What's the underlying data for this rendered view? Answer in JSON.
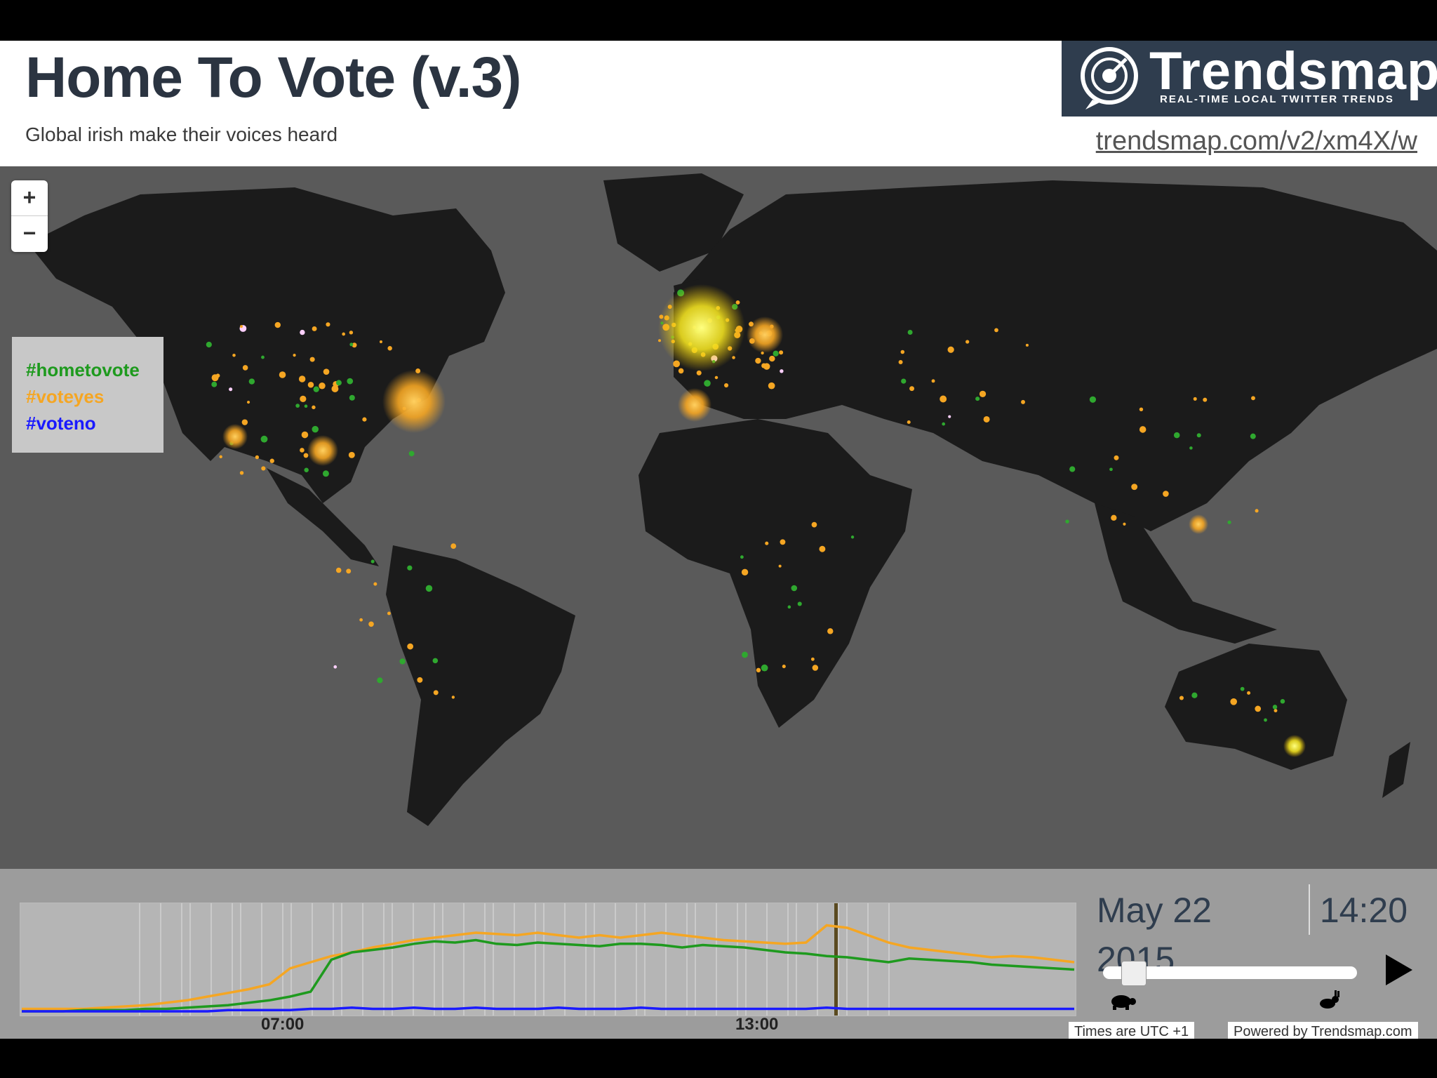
{
  "header": {
    "title": "Home To Vote (v.3)",
    "subtitle": "Global irish make their voices heard",
    "link": "trendsmap.com/v2/xm4X/w"
  },
  "logo": {
    "name": "Trendsmap",
    "tagline": "REAL-TIME LOCAL TWITTER TRENDS"
  },
  "zoom": {
    "in_label": "+",
    "out_label": "−"
  },
  "legend": {
    "items": [
      {
        "label": "#hometovote",
        "color": "#1e9a1e"
      },
      {
        "label": "#voteyes",
        "color": "#f5a623"
      },
      {
        "label": "#voteno",
        "color": "#1a1aff"
      }
    ]
  },
  "timeline": {
    "tick_labels": [
      "07:00",
      "13:00"
    ],
    "date": "May 22",
    "year": "2015",
    "time": "14:20",
    "slow_icon": "turtle-icon",
    "fast_icon": "rabbit-icon",
    "timezone_note": "Times are UTC +1",
    "powered_by": "Powered by Trendsmap.com"
  },
  "chart_data": {
    "type": "line",
    "series": [
      {
        "name": "#voteyes",
        "color": "#f5a623",
        "values": [
          2,
          2,
          2,
          2,
          3,
          4,
          5,
          7,
          9,
          12,
          15,
          18,
          22,
          35,
          40,
          45,
          48,
          52,
          55,
          58,
          60,
          62,
          64,
          63,
          62,
          64,
          62,
          60,
          62,
          60,
          62,
          64,
          62,
          60,
          58,
          57,
          56,
          55,
          56,
          70,
          68,
          62,
          56,
          52,
          50,
          48,
          46,
          44,
          45,
          44,
          42,
          40
        ]
      },
      {
        "name": "#hometovote",
        "color": "#1e9a1e",
        "values": [
          0,
          0,
          0,
          1,
          1,
          1,
          2,
          2,
          3,
          4,
          5,
          7,
          9,
          12,
          16,
          42,
          48,
          50,
          52,
          55,
          57,
          56,
          58,
          55,
          54,
          56,
          55,
          54,
          53,
          55,
          55,
          54,
          52,
          54,
          53,
          52,
          50,
          48,
          47,
          45,
          44,
          42,
          40,
          43,
          42,
          41,
          40,
          38,
          37,
          36,
          35,
          34
        ]
      },
      {
        "name": "#voteno",
        "color": "#1a1aff",
        "values": [
          0,
          0,
          0,
          0,
          0,
          0,
          0,
          0,
          0,
          0,
          1,
          1,
          1,
          1,
          2,
          2,
          3,
          2,
          2,
          3,
          2,
          2,
          3,
          2,
          2,
          2,
          3,
          2,
          2,
          2,
          3,
          2,
          2,
          2,
          2,
          2,
          2,
          2,
          2,
          3,
          2,
          2,
          2,
          2,
          2,
          2,
          2,
          2,
          2,
          2,
          2,
          2
        ]
      }
    ],
    "x_ticks": [
      "07:00",
      "13:00"
    ]
  }
}
